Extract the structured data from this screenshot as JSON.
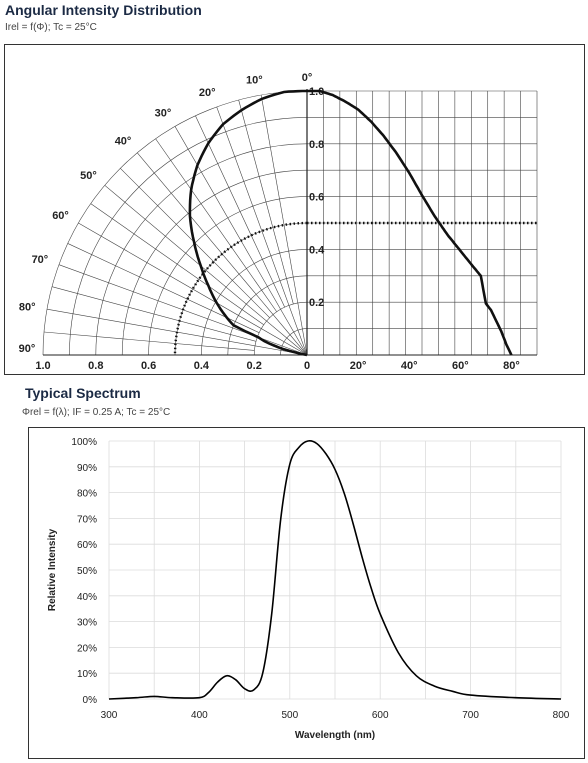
{
  "angular": {
    "title": "Angular Intensity Distribution",
    "subtitle": "Irel = f(Φ); Tc = 25°C",
    "chart_data": {
      "type": "line",
      "polar_angle_labels": [
        "0°",
        "10°",
        "20°",
        "30°",
        "40°",
        "50°",
        "60°",
        "70°",
        "80°",
        "90°"
      ],
      "radial_labels": [
        "1.0",
        "0.8",
        "0.6",
        "0.4",
        "0.2",
        "0"
      ],
      "left_axis_labels": [
        "1.0",
        "0.8",
        "0.6",
        "0.4",
        "0.2",
        "0"
      ],
      "right_axis_labels": [
        "20°",
        "40°",
        "60°",
        "80°"
      ],
      "radial_range": [
        0,
        1
      ],
      "angle_range": [
        0,
        90
      ],
      "grid": true,
      "series": [
        {
          "style": "solid",
          "x": [
            0,
            5,
            10,
            15,
            20,
            25,
            30,
            35,
            40,
            45,
            50,
            55,
            60,
            65,
            68,
            70,
            72,
            74,
            76,
            78,
            80
          ],
          "y": [
            1.0,
            1.0,
            0.985,
            0.96,
            0.93,
            0.885,
            0.83,
            0.765,
            0.69,
            0.605,
            0.525,
            0.455,
            0.395,
            0.335,
            0.3,
            0.195,
            0.17,
            0.13,
            0.09,
            0.04,
            0.0
          ]
        },
        {
          "style": "dotted",
          "x": [
            0,
            90
          ],
          "y": [
            0.5,
            0.5
          ]
        }
      ]
    }
  },
  "spectrum": {
    "title": "Typical Spectrum",
    "subtitle": "Φrel = f(λ); IF = 0.25 A; Tc = 25°C",
    "chart_data": {
      "type": "line",
      "xlabel": "Wavelength (nm)",
      "ylabel": "Relative Intensity",
      "xlim": [
        300,
        800
      ],
      "ylim": [
        0,
        100
      ],
      "x_ticks": [
        "300",
        "400",
        "500",
        "600",
        "700",
        "800"
      ],
      "y_ticks": [
        "0%",
        "10%",
        "20%",
        "30%",
        "40%",
        "50%",
        "60%",
        "70%",
        "80%",
        "90%",
        "100%"
      ],
      "grid": true,
      "series": [
        {
          "x": [
            300,
            330,
            350,
            370,
            400,
            410,
            420,
            430,
            440,
            450,
            460,
            470,
            480,
            490,
            500,
            510,
            520,
            530,
            540,
            550,
            560,
            570,
            580,
            590,
            600,
            620,
            640,
            660,
            680,
            700,
            750,
            800
          ],
          "y": [
            0,
            0.5,
            1,
            0.5,
            0.5,
            2.5,
            6.5,
            9,
            7.5,
            4,
            3.5,
            10,
            33,
            70,
            91,
            97.5,
            100,
            99,
            95,
            89,
            80,
            68,
            55,
            43,
            33,
            18,
            9,
            5,
            3,
            1.5,
            0.5,
            0
          ]
        }
      ]
    }
  }
}
